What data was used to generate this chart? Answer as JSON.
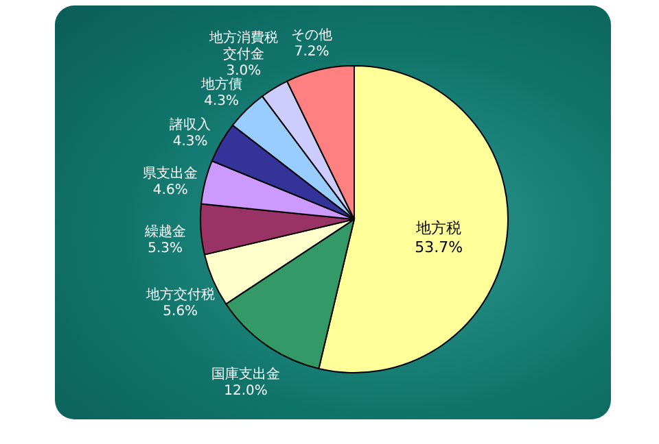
{
  "chart_data": {
    "type": "pie",
    "categories": [
      "地方税",
      "国庫支出金",
      "地方交付税",
      "繰越金",
      "県支出金",
      "諸収入",
      "地方債",
      "地方消費税交付金",
      "その他"
    ],
    "values": [
      53.7,
      12.0,
      5.6,
      5.3,
      4.6,
      4.3,
      4.3,
      3.0,
      7.2
    ],
    "value_labels": [
      "53.7%",
      "12.0%",
      "5.6%",
      "5.3%",
      "4.6%",
      "4.3%",
      "4.3%",
      "3.0%",
      "7.2%"
    ],
    "colors": [
      "#ffff99",
      "#339966",
      "#ffffcc",
      "#993366",
      "#cc99ff",
      "#333399",
      "#99ccff",
      "#ccccff",
      "#ff8080"
    ]
  }
}
